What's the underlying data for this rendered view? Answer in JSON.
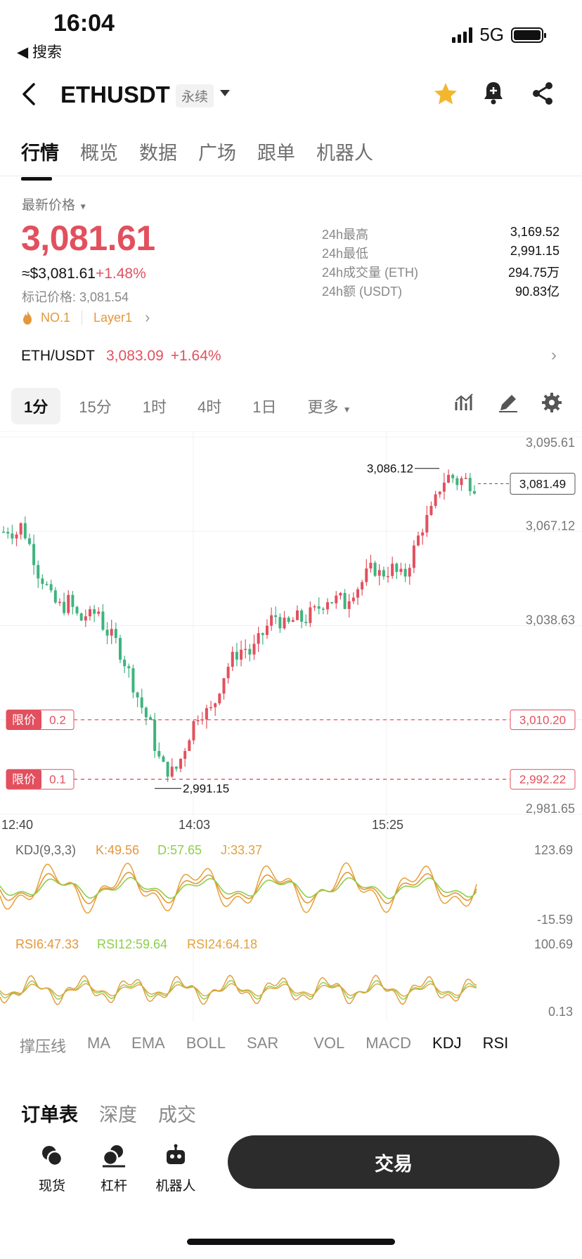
{
  "status": {
    "time": "16:04",
    "back_label": "◀ 搜索",
    "network": "5G"
  },
  "header": {
    "symbol": "ETHUSDT",
    "badge": "永续",
    "icons": [
      "back-chevron-icon",
      "dropdown-icon",
      "star-icon",
      "bell-add-icon",
      "share-icon"
    ]
  },
  "tabs": [
    "行情",
    "概览",
    "数据",
    "广场",
    "跟单",
    "机器人"
  ],
  "price": {
    "label": "最新价格",
    "last": "3,081.61",
    "usd": "≈$3,081.61",
    "change": "+1.48%",
    "mark": "标记价格: 3,081.54",
    "rank": "NO.1",
    "tag": "Layer1"
  },
  "stats": [
    {
      "k": "24h最高",
      "v": "3,169.52"
    },
    {
      "k": "24h最低",
      "v": "2,991.15"
    },
    {
      "k": "24h成交量 (ETH)",
      "v": "294.75万"
    },
    {
      "k": "24h额 (USDT)",
      "v": "90.83亿"
    }
  ],
  "spot_pair": {
    "name": "ETH/USDT",
    "price": "3,083.09",
    "change": "+1.64%"
  },
  "intervals": [
    "1分",
    "15分",
    "1时",
    "4时",
    "1日",
    "更多"
  ],
  "colors": {
    "up": "#e2505e",
    "down": "#3fb37f",
    "accent_orange": "#e5973a",
    "kdj_j": "#e5a13a",
    "kdj_d": "#8dcf4a"
  },
  "chart_data": {
    "type": "candlestick",
    "y_ticks": [
      "3,095.61",
      "3,067.12",
      "3,038.63",
      "2,981.65"
    ],
    "x_ticks": [
      "12:40",
      "14:03",
      "15:25"
    ],
    "high_label": "3,086.12",
    "low_label": "2,991.15",
    "current_price": "3,081.49",
    "limit_orders": [
      {
        "label": "限价",
        "qty": "0.2",
        "price": "3,010.20",
        "value": 3010.2
      },
      {
        "label": "限价",
        "qty": "0.1",
        "price": "2,992.22",
        "value": 2992.22
      }
    ],
    "ylim": [
      2981.65,
      3095.61
    ],
    "path": [
      3067,
      3068,
      3066,
      3069,
      3065,
      3060,
      3054,
      3052,
      3047,
      3045,
      3044,
      3046,
      3043,
      3040,
      3042,
      3041,
      3044,
      3038,
      3036,
      3034,
      3030,
      3026,
      3021,
      3016,
      3012,
      3008,
      3000,
      2996,
      2995,
      2994,
      2998,
      3003,
      3008,
      3012,
      3013,
      3012,
      3016,
      3022,
      3026,
      3029,
      3031,
      3032,
      3030,
      3033,
      3036,
      3039,
      3042,
      3040,
      3038,
      3040,
      3041,
      3040,
      3042,
      3043,
      3045,
      3047,
      3046,
      3047,
      3045,
      3049,
      3050,
      3052,
      3055,
      3056,
      3054,
      3055,
      3056,
      3054,
      3053,
      3058,
      3063,
      3068,
      3071,
      3074,
      3080,
      3083,
      3084,
      3082,
      3083,
      3082,
      3081
    ]
  },
  "kdj": {
    "label": "KDJ(9,3,3)",
    "k": "K:49.56",
    "d": "D:57.65",
    "j": "J:33.37",
    "max": "123.69",
    "min": "-15.59"
  },
  "rsi": {
    "r6": "RSI6:47.33",
    "r12": "RSI12:59.64",
    "r24": "RSI24:64.18",
    "max": "100.69",
    "min": "0.13"
  },
  "indicator_tabs": [
    "撑压线",
    "MA",
    "EMA",
    "BOLL",
    "SAR",
    "VOL",
    "MACD",
    "KDJ",
    "RSI"
  ],
  "section_tabs": [
    "订单表",
    "深度",
    "成交"
  ],
  "bottom": {
    "spot": "现货",
    "margin": "杠杆",
    "bot": "机器人",
    "trade": "交易"
  }
}
